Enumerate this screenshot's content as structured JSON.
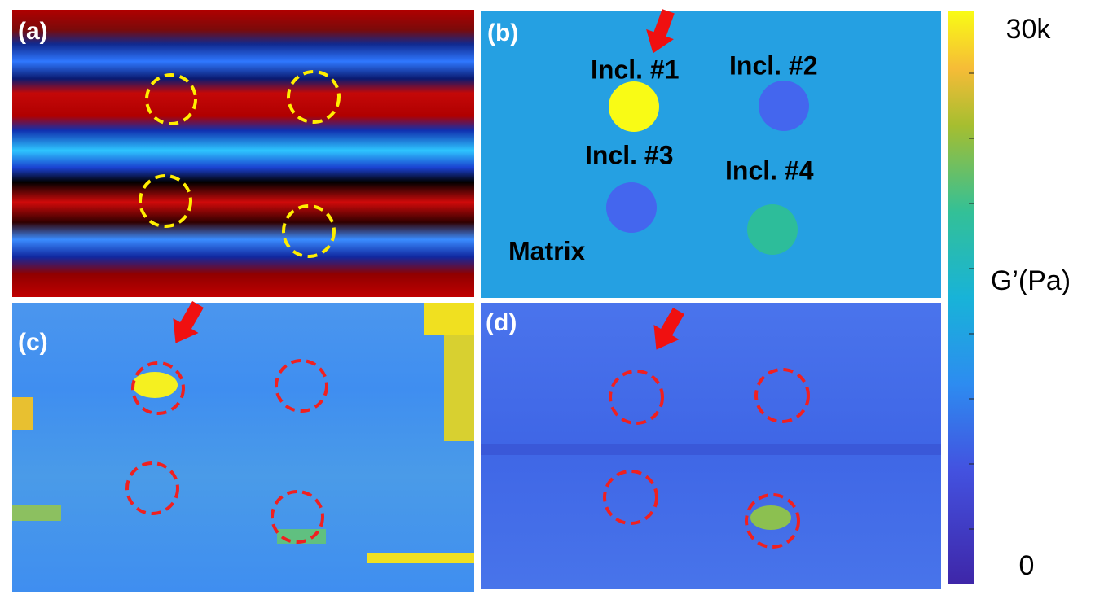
{
  "panels": [
    {
      "label": "(a)"
    },
    {
      "label": "(b)",
      "annotations": [
        "Incl. #1",
        "Incl. #2",
        "Incl. #3",
        "Incl. #4",
        "Matrix"
      ]
    },
    {
      "label": "(c)"
    },
    {
      "label": "(d)"
    }
  ],
  "colorbar": {
    "max": "30k",
    "min": "0",
    "title": "G’(Pa)"
  }
}
